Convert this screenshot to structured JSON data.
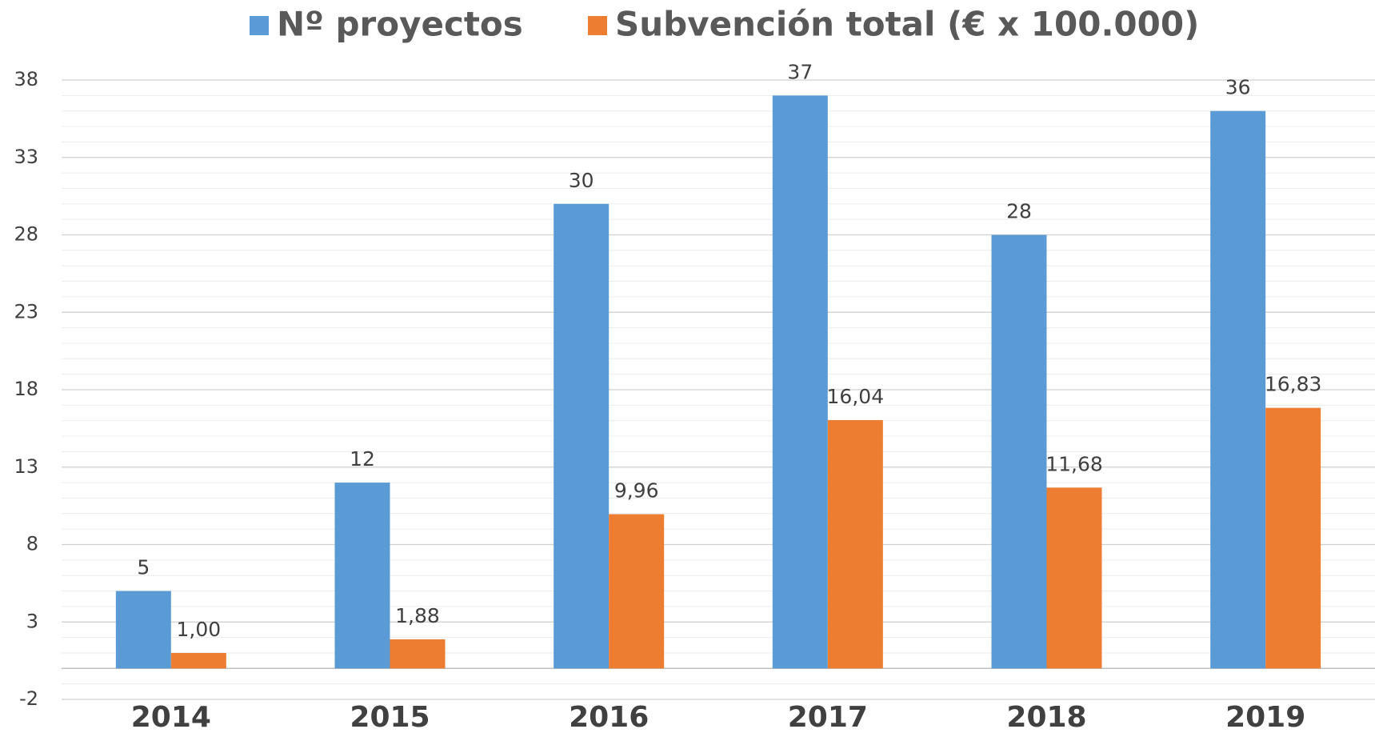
{
  "chart_data": {
    "type": "bar",
    "categories": [
      "2014",
      "2015",
      "2016",
      "2017",
      "2018",
      "2019"
    ],
    "series": [
      {
        "name": "Nº proyectos",
        "color": "#5b9bd5",
        "values": [
          5,
          12,
          30,
          37,
          28,
          36
        ]
      },
      {
        "name": "Subvención total (€ x 100.000)",
        "color": "#ed7d31",
        "values": [
          1.0,
          1.88,
          9.96,
          16.04,
          11.68,
          16.83
        ],
        "value_labels": [
          "1,00",
          "1,88",
          "9,96",
          "16,04",
          "11,68",
          "16,83"
        ]
      }
    ],
    "ylim": [
      -2,
      38
    ],
    "yticks": [
      -2,
      3,
      8,
      13,
      18,
      23,
      28,
      33,
      38
    ],
    "grid": true,
    "minor_grid": true,
    "legend": "top"
  }
}
